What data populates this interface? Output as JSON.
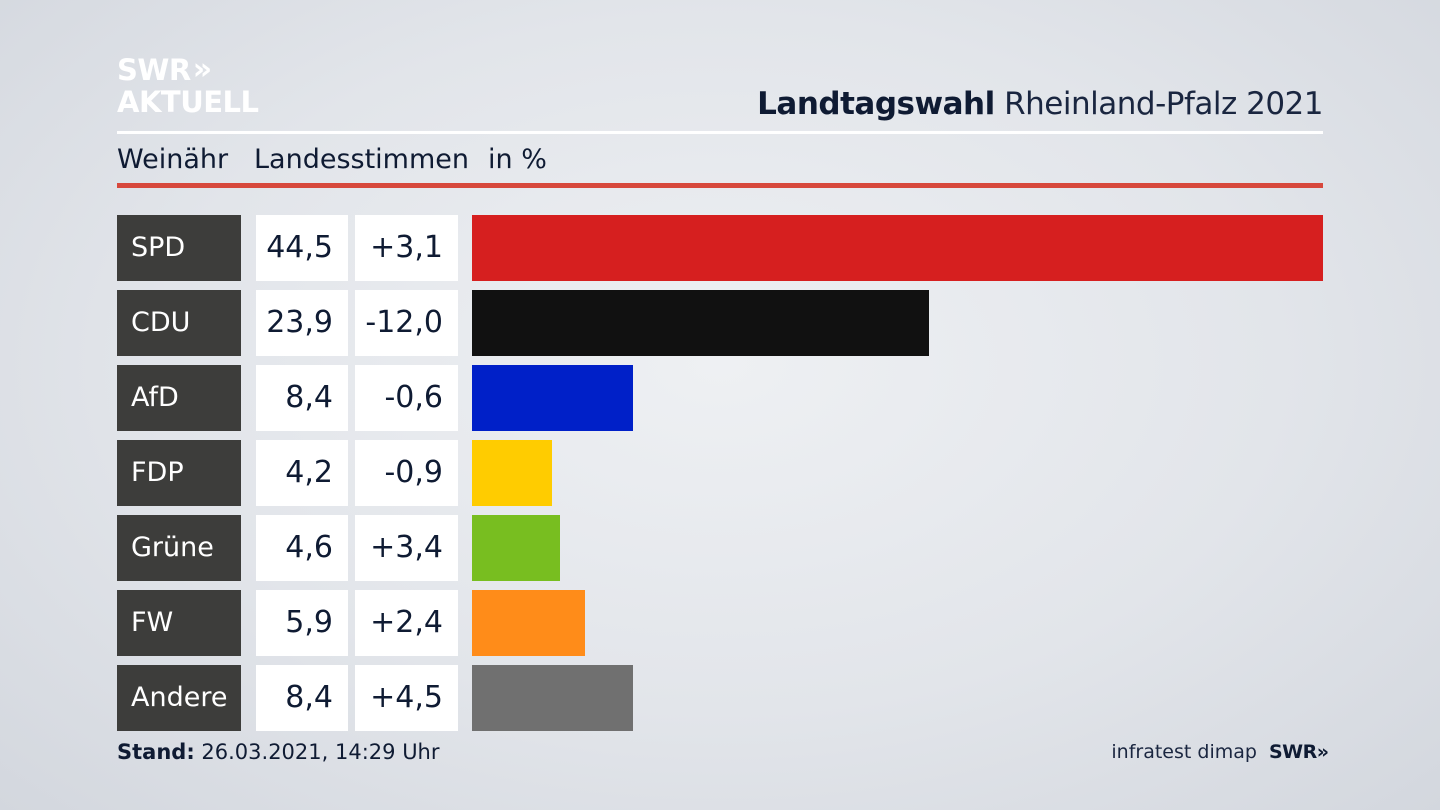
{
  "logo": {
    "line1": "SWR",
    "line1_chevrons": "»",
    "line2": "AKTUELL"
  },
  "title": {
    "bold": "Landtagswahl",
    "normal": "Rheinland-Pfalz 2021"
  },
  "subheader": {
    "region": "Weinähr",
    "type": "Landesstimmen",
    "unit": "in %"
  },
  "colors": {
    "accent_red_rule": "#d7483c",
    "party_label_bg": "#3d3d3b"
  },
  "chart_data": {
    "type": "bar",
    "orientation": "horizontal",
    "categories": [
      "SPD",
      "CDU",
      "AfD",
      "FDP",
      "Grüne",
      "FW",
      "Andere"
    ],
    "values": [
      44.5,
      23.9,
      8.4,
      4.2,
      4.6,
      5.9,
      8.4
    ],
    "value_labels": [
      "44,5",
      "23,9",
      "8,4",
      "4,2",
      "4,6",
      "5,9",
      "8,4"
    ],
    "change_labels": [
      "+3,1",
      "-12,0",
      "-0,6",
      "-0,9",
      "+3,4",
      "+2,4",
      "+4,5"
    ],
    "bar_colors": [
      "#d61f1f",
      "#111111",
      "#0020c8",
      "#ffcc00",
      "#78be20",
      "#ff8c19",
      "#707070"
    ],
    "xlim": [
      0,
      44.5
    ]
  },
  "footer": {
    "stand_label": "Stand:",
    "stand_value": "26.03.2021, 14:29 Uhr",
    "source": "infratest dimap",
    "brand": "SWR",
    "brand_chevrons": "»"
  }
}
